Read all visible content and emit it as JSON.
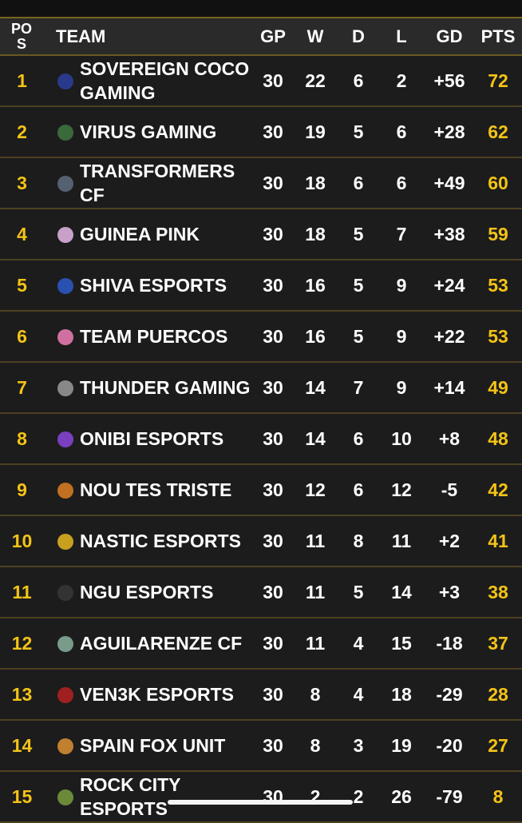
{
  "header": {
    "columns": [
      "POS",
      "TEAM",
      "GP",
      "W",
      "D",
      "L",
      "GD",
      "PTS"
    ]
  },
  "table": {
    "rows": [
      [
        "1",
        "SOVEREIGN COCO GAMING",
        "30",
        "22",
        "6",
        "2",
        "+56",
        "72"
      ],
      [
        "2",
        "VIRUS GAMING",
        "30",
        "19",
        "5",
        "6",
        "+28",
        "62"
      ],
      [
        "3",
        "TRANSFORMERS CF",
        "30",
        "18",
        "6",
        "6",
        "+49",
        "60"
      ],
      [
        "4",
        "GUINEA PINK",
        "30",
        "18",
        "5",
        "7",
        "+38",
        "59"
      ],
      [
        "5",
        "SHIVA ESPORTS",
        "30",
        "16",
        "5",
        "9",
        "+24",
        "53"
      ],
      [
        "6",
        "TEAM PUERCOS",
        "30",
        "16",
        "5",
        "9",
        "+22",
        "53"
      ],
      [
        "7",
        "THUNDER GAMING",
        "30",
        "14",
        "7",
        "9",
        "+14",
        "49"
      ],
      [
        "8",
        "ONIBI ESPORTS",
        "30",
        "14",
        "6",
        "10",
        "+8",
        "48"
      ],
      [
        "9",
        "NOU TES TRISTE",
        "30",
        "12",
        "6",
        "12",
        "-5",
        "42"
      ],
      [
        "10",
        "NASTIC ESPORTS",
        "30",
        "11",
        "8",
        "11",
        "+2",
        "41"
      ],
      [
        "11",
        "NGU ESPORTS",
        "30",
        "11",
        "5",
        "14",
        "+3",
        "38"
      ],
      [
        "12",
        "AGUILARENZE CF",
        "30",
        "11",
        "4",
        "15",
        "-18",
        "37"
      ],
      [
        "13",
        "VEN3K ESPORTS",
        "30",
        "8",
        "4",
        "18",
        "-29",
        "28"
      ],
      [
        "14",
        "SPAIN FOX UNIT",
        "30",
        "8",
        "3",
        "19",
        "-20",
        "27"
      ],
      [
        "15",
        "ROCK CITY ESPORTS",
        "30",
        "2",
        "2",
        "26",
        "-79",
        "8"
      ]
    ]
  }
}
